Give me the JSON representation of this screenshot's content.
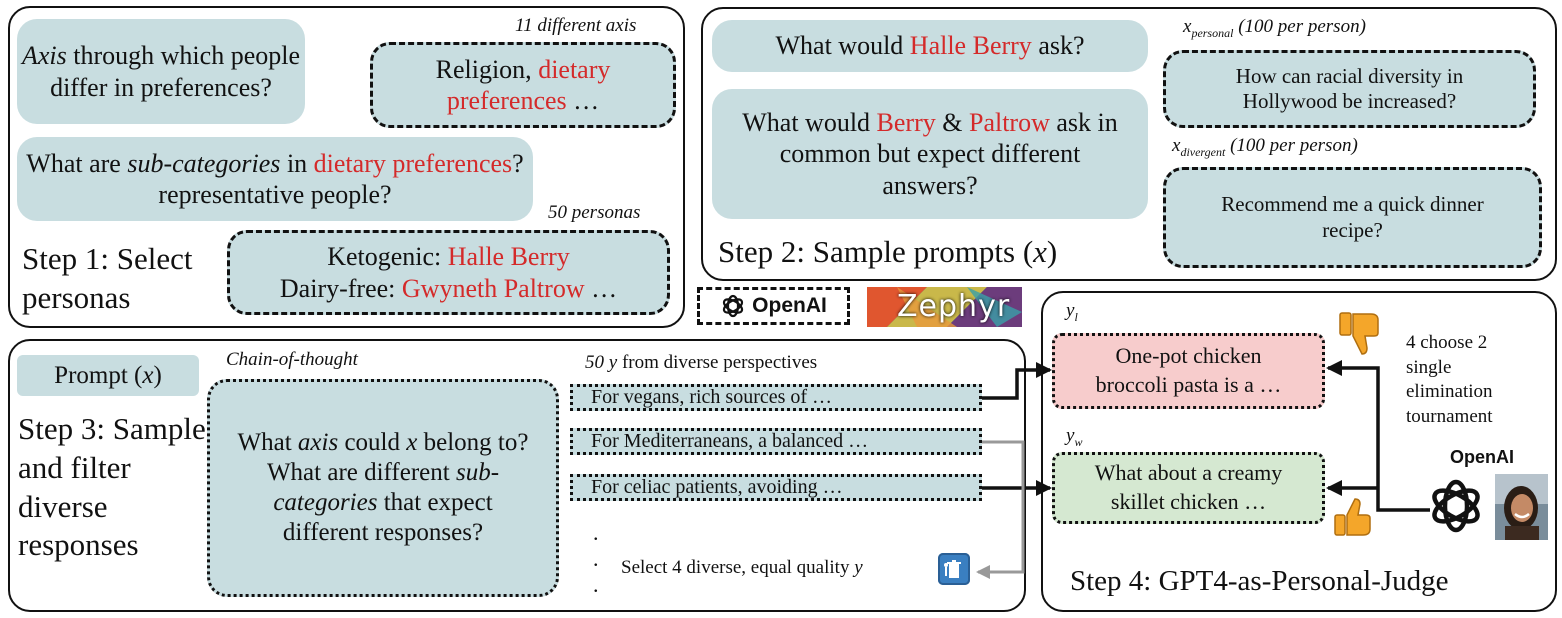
{
  "step1": {
    "q_axis_italic": "Axis",
    "q_axis_rest": "through which people differ in preferences?",
    "note_axes": "11 different axis",
    "axes_answer_plain": "Religion,",
    "axes_answer_red": "dietary preferences",
    "axes_answer_tail": "…",
    "q_sub_prefix": "What are",
    "q_sub_italic": "sub-categories",
    "q_sub_in": "in",
    "q_sub_red": "dietary preferences",
    "q_sub_tail": "? representative people?",
    "note_personas": "50 personas",
    "persona1_label": "Ketogenic:",
    "persona1_name": "Halle Berry",
    "persona2_label": "Dairy-free:",
    "persona2_name": "Gwyneth Paltrow",
    "persona2_tail": "…",
    "label": "Step 1: Select personas"
  },
  "step2": {
    "q_would_prefix": "What would",
    "q_would_name": "Halle Berry",
    "q_would_tail": "ask?",
    "q_common_prefix": "What would",
    "q_common_name1": "Berry",
    "q_common_amp": "&",
    "q_common_name2": "Paltrow",
    "q_common_tail": "ask in common but expect different answers?",
    "label_plain": "Step 2: Sample prompts (",
    "label_var": "x",
    "label_close": ")",
    "x_personal_var": "x",
    "x_personal_sub": "personal",
    "x_personal_note": "(100 per person)",
    "x_personal_example": "How can racial diversity in Hollywood be increased?",
    "x_divergent_var": "x",
    "x_divergent_sub": "divergent",
    "x_divergent_note": "(100 per person)",
    "x_divergent_example": "Recommend me a quick dinner recipe?"
  },
  "logos": {
    "openai": "OpenAI",
    "zephyr": "Zephyr"
  },
  "step3": {
    "prompt_label": "Prompt (",
    "prompt_var": "x",
    "prompt_close": ")",
    "label": "Step 3: Sample and filter diverse responses",
    "cot_note": "Chain-of-thought",
    "cot_line1_prefix": "What",
    "cot_line1_italic": "axis",
    "cot_line1_mid": "could",
    "cot_line1_var": "x",
    "cot_line1_tail": "belong to?",
    "cot_line2": "What are different",
    "cot_line3_italic": "sub-categories",
    "cot_line3_tail": "that expect different responses?",
    "responses_note_num": "50",
    "responses_note_var": "y",
    "responses_note_tail": "from diverse perspectives",
    "responses": [
      "For vegans, rich sources of …",
      "For Mediterraneans, a balanced …",
      "For celiac patients, avoiding …"
    ],
    "select_note_text": "Select 4 diverse, equal quality",
    "select_note_var": "y"
  },
  "step4": {
    "yl_var": "y",
    "yl_sub": "l",
    "yl_text": "One-pot chicken broccoli pasta is a …",
    "yw_var": "y",
    "yw_sub": "w",
    "yw_text": "What about a creamy skillet chicken …",
    "tournament": "4 choose 2 single elimination tournament",
    "judge_brand": "OpenAI",
    "label": "Step 4: GPT4-as-Personal-Judge"
  },
  "colors": {
    "bubble": "#c8dde0",
    "red_text": "#d42a2a",
    "loser_box": "#f7cccc",
    "winner_box": "#d5e8d1",
    "thumb": "#f4a62a"
  }
}
